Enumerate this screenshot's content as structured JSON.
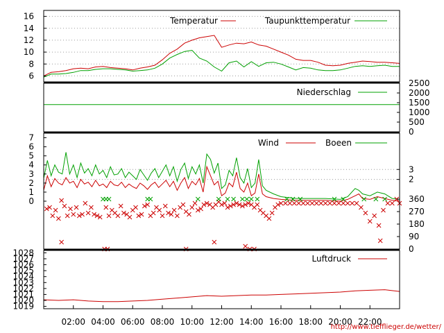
{
  "colors": {
    "red": "#cc0000",
    "green": "#00a000",
    "grid": "#9a9a9a",
    "frame": "#000000"
  },
  "source_url": "http://www.tiefflieger.de/wetter/",
  "x_axis": {
    "unit": "hours",
    "range": [
      0,
      24
    ],
    "ticks": [
      2,
      4,
      6,
      8,
      10,
      12,
      14,
      16,
      18,
      20,
      22
    ],
    "labels": [
      "02:00",
      "04:00",
      "06:00",
      "08:00",
      "10:00",
      "12:00",
      "14:00",
      "16:00",
      "18:00",
      "20:00",
      "22:00"
    ]
  },
  "chart_data": [
    {
      "type": "line",
      "panel": "temperature",
      "ylim": [
        5,
        17
      ],
      "yticks": [
        6,
        8,
        10,
        12,
        14,
        16
      ],
      "grid": true,
      "legend_position": "top-right",
      "series": [
        {
          "name": "Temperatur",
          "color": "#cc0000",
          "x": [
            0,
            0.5,
            1,
            1.5,
            2,
            2.5,
            3,
            3.5,
            4,
            4.5,
            5,
            5.5,
            6,
            6.5,
            7,
            7.5,
            8,
            8.5,
            9,
            9.5,
            10,
            10.5,
            11,
            11.5,
            12,
            12.5,
            13,
            13.5,
            14,
            14.5,
            15,
            15.5,
            16,
            16.5,
            17,
            17.5,
            18,
            18.5,
            19,
            19.5,
            20,
            20.5,
            21,
            21.5,
            22,
            22.5,
            23,
            23.5,
            24
          ],
          "y": [
            6.0,
            6.6,
            6.7,
            6.9,
            7.2,
            7.3,
            7.2,
            7.5,
            7.6,
            7.4,
            7.3,
            7.2,
            7.0,
            7.3,
            7.5,
            7.8,
            8.7,
            9.8,
            10.5,
            11.5,
            12.0,
            12.4,
            12.6,
            12.8,
            10.8,
            11.2,
            11.5,
            11.4,
            11.7,
            11.2,
            11.0,
            10.5,
            10.0,
            9.5,
            8.8,
            8.6,
            8.6,
            8.3,
            7.8,
            7.7,
            7.8,
            8.1,
            8.3,
            8.5,
            8.4,
            8.3,
            8.3,
            8.2,
            8.1
          ]
        },
        {
          "name": "Taupunkttemperatur",
          "color": "#00a000",
          "x": [
            0,
            0.5,
            1,
            1.5,
            2,
            2.5,
            3,
            3.5,
            4,
            4.5,
            5,
            5.5,
            6,
            6.5,
            7,
            7.5,
            8,
            8.5,
            9,
            9.5,
            10,
            10.5,
            11,
            11.5,
            12,
            12.5,
            13,
            13.5,
            14,
            14.5,
            15,
            15.5,
            16,
            16.5,
            17,
            17.5,
            18,
            18.5,
            19,
            19.5,
            20,
            20.5,
            21,
            21.5,
            22,
            22.5,
            23,
            23.5,
            24
          ],
          "y": [
            5.8,
            6.3,
            6.3,
            6.4,
            6.6,
            6.9,
            6.9,
            7.1,
            7.2,
            7.2,
            7.1,
            7.0,
            6.8,
            6.9,
            7.0,
            7.3,
            8.0,
            9.0,
            9.6,
            10.1,
            10.3,
            9.0,
            8.5,
            7.5,
            6.8,
            8.2,
            8.5,
            7.5,
            8.4,
            7.6,
            8.2,
            8.3,
            8.0,
            7.5,
            7.0,
            7.4,
            7.3,
            7.0,
            6.9,
            6.9,
            7.0,
            7.3,
            7.6,
            7.7,
            7.6,
            7.7,
            7.8,
            7.6,
            7.6
          ]
        }
      ]
    },
    {
      "type": "line",
      "panel": "precipitation",
      "ylim": [
        0,
        2500
      ],
      "yticks": [
        0,
        500,
        1000,
        1500,
        2000,
        2500
      ],
      "series": [
        {
          "name": "Niederschlag",
          "color": "#00a000",
          "x": [
            0,
            24
          ],
          "y": [
            1400,
            1400
          ]
        }
      ]
    },
    {
      "type": "line",
      "panel": "wind",
      "ylim": [
        0,
        7.5
      ],
      "yticks": [
        0,
        1,
        2,
        3,
        4,
        5,
        6,
        7
      ],
      "right_ticks": [
        {
          "label": "3",
          "value": 3.5
        },
        {
          "label": "2",
          "value": 2.4
        }
      ],
      "series": [
        {
          "name": "Wind",
          "color": "#cc0000",
          "x": [
            0,
            0.25,
            0.5,
            0.75,
            1,
            1.25,
            1.5,
            1.75,
            2,
            2.25,
            2.5,
            2.75,
            3,
            3.25,
            3.5,
            3.75,
            4,
            4.25,
            4.5,
            4.75,
            5,
            5.25,
            5.5,
            5.75,
            6,
            6.25,
            6.5,
            6.75,
            7,
            7.25,
            7.5,
            7.75,
            8,
            8.25,
            8.5,
            8.75,
            9,
            9.25,
            9.5,
            9.75,
            10,
            10.25,
            10.5,
            10.75,
            11,
            11.25,
            11.5,
            11.75,
            12,
            12.25,
            12.5,
            12.75,
            13,
            13.25,
            13.5,
            13.75,
            14,
            14.25,
            14.5,
            14.75,
            15,
            15.5,
            16,
            17,
            18,
            19,
            20,
            20.5,
            21,
            21.25,
            21.5,
            22,
            22.5,
            23,
            23.5,
            24
          ],
          "y": [
            1.2,
            2.8,
            1.6,
            2.5,
            2.0,
            1.8,
            2.6,
            2.0,
            2.2,
            1.5,
            2.4,
            1.9,
            2.1,
            1.6,
            2.3,
            1.7,
            1.9,
            1.5,
            2.2,
            1.8,
            1.7,
            2.1,
            1.5,
            1.9,
            1.6,
            1.4,
            2.0,
            1.7,
            1.3,
            1.8,
            2.1,
            1.5,
            1.9,
            2.3,
            1.6,
            2.2,
            1.2,
            2.0,
            2.6,
            1.4,
            2.2,
            1.8,
            2.5,
            1.0,
            3.8,
            2.8,
            1.8,
            2.2,
            0.6,
            0.9,
            2.0,
            1.6,
            3.2,
            1.4,
            1.0,
            2.0,
            0.6,
            0.9,
            3.0,
            0.8,
            0.5,
            0.3,
            0.2,
            0.1,
            0.1,
            0.1,
            0.0,
            0.2,
            0.6,
            0.8,
            0.3,
            0.2,
            0.5,
            0.3,
            0.1,
            0.0
          ]
        },
        {
          "name": "Boeen",
          "color": "#00a000",
          "x": [
            0,
            0.25,
            0.5,
            0.75,
            1,
            1.25,
            1.5,
            1.75,
            2,
            2.25,
            2.5,
            2.75,
            3,
            3.25,
            3.5,
            3.75,
            4,
            4.25,
            4.5,
            4.75,
            5,
            5.25,
            5.5,
            5.75,
            6,
            6.25,
            6.5,
            6.75,
            7,
            7.25,
            7.5,
            7.75,
            8,
            8.25,
            8.5,
            8.75,
            9,
            9.25,
            9.5,
            9.75,
            10,
            10.25,
            10.5,
            10.75,
            11,
            11.25,
            11.5,
            11.75,
            12,
            12.25,
            12.5,
            12.75,
            13,
            13.25,
            13.5,
            13.75,
            14,
            14.25,
            14.5,
            14.75,
            15,
            15.5,
            16,
            17,
            18,
            19,
            20,
            20.5,
            21,
            21.25,
            21.5,
            22,
            22.5,
            23,
            23.5,
            24
          ],
          "y": [
            2.5,
            4.5,
            2.8,
            4.0,
            3.2,
            3.0,
            5.4,
            3.0,
            4.0,
            2.6,
            4.2,
            3.1,
            3.6,
            2.8,
            4.0,
            3.0,
            3.4,
            2.6,
            3.8,
            2.9,
            3.0,
            3.6,
            2.6,
            3.2,
            2.8,
            2.4,
            3.5,
            2.9,
            2.3,
            3.1,
            3.6,
            2.6,
            3.3,
            4.0,
            2.8,
            3.8,
            2.2,
            3.5,
            4.2,
            2.5,
            3.8,
            3.0,
            4.0,
            2.0,
            5.2,
            4.6,
            3.1,
            4.2,
            1.4,
            1.8,
            3.4,
            2.8,
            4.8,
            2.6,
            2.0,
            3.6,
            1.5,
            2.0,
            4.6,
            1.7,
            1.2,
            0.8,
            0.5,
            0.3,
            0.3,
            0.3,
            0.2,
            0.5,
            1.4,
            1.2,
            0.8,
            0.6,
            1.0,
            0.8,
            0.3,
            0.2
          ]
        }
      ]
    },
    {
      "type": "scatter",
      "panel": "wind-direction",
      "ylim": [
        0,
        360
      ],
      "yticks": [
        0,
        90,
        180,
        270,
        360
      ],
      "series": [
        {
          "name": "",
          "color": "#cc0000",
          "x": [
            0.2,
            0.4,
            0.6,
            0.8,
            1.0,
            1.2,
            1.4,
            1.6,
            1.8,
            2.0,
            2.2,
            2.4,
            2.6,
            2.8,
            3.0,
            3.2,
            3.4,
            3.6,
            3.8,
            4.2,
            4.4,
            4.6,
            4.8,
            5.0,
            5.2,
            5.4,
            5.6,
            5.8,
            6.0,
            6.2,
            6.4,
            6.6,
            6.8,
            7.0,
            7.2,
            7.4,
            7.6,
            7.8,
            8.0,
            8.2,
            8.4,
            8.6,
            8.8,
            9.0,
            9.2,
            9.4,
            9.6,
            9.8,
            10.0,
            10.2,
            10.4,
            10.6,
            10.8,
            11.0,
            11.2,
            11.4,
            11.6,
            11.8,
            12.0,
            12.2,
            12.4,
            12.6,
            12.8,
            13.0,
            13.2,
            13.4,
            13.6,
            13.8,
            14.0,
            14.2,
            14.4,
            14.6,
            14.8,
            15.0,
            15.2,
            15.4,
            15.6,
            15.8,
            16.0,
            16.3,
            16.6,
            16.9,
            17.2,
            17.5,
            17.8,
            18.1,
            18.4,
            18.7,
            19.0,
            19.3,
            19.6,
            19.9,
            20.2,
            20.5,
            20.8,
            21.1,
            21.4,
            21.7,
            22.0,
            22.3,
            22.6,
            22.9,
            23.2,
            23.5,
            23.8,
            24.0,
            1.2,
            4.1,
            4.3,
            9.6,
            11.5,
            13.6,
            13.9,
            14.2,
            22.7
          ],
          "y": [
            290,
            300,
            240,
            280,
            220,
            350,
            310,
            240,
            290,
            250,
            300,
            240,
            250,
            330,
            260,
            300,
            250,
            240,
            230,
            300,
            240,
            280,
            260,
            240,
            310,
            260,
            250,
            230,
            280,
            300,
            240,
            250,
            310,
            320,
            240,
            260,
            300,
            280,
            240,
            310,
            260,
            250,
            280,
            240,
            300,
            320,
            270,
            250,
            300,
            330,
            280,
            290,
            320,
            330,
            320,
            300,
            320,
            340,
            320,
            330,
            300,
            310,
            320,
            330,
            320,
            310,
            320,
            330,
            320,
            300,
            320,
            280,
            260,
            240,
            220,
            260,
            300,
            320,
            330,
            330,
            330,
            330,
            330,
            330,
            330,
            330,
            330,
            330,
            330,
            330,
            330,
            330,
            330,
            330,
            330,
            330,
            300,
            260,
            200,
            240,
            170,
            280,
            330,
            330,
            360,
            330,
            50,
            0,
            0,
            0,
            50,
            20,
            0,
            0,
            60
          ]
        },
        {
          "name": "",
          "color": "#00a000",
          "x": [
            4.0,
            4.2,
            4.4,
            7.0,
            7.2,
            10.4,
            11.8,
            12.4,
            12.8,
            13.4,
            13.7,
            14.0,
            14.4,
            16.4,
            16.8,
            17.3,
            19.6,
            20.2,
            21.6,
            22.4,
            23.0
          ],
          "y": [
            360,
            360,
            360,
            360,
            360,
            360,
            360,
            360,
            360,
            360,
            360,
            360,
            360,
            360,
            360,
            360,
            360,
            360,
            360,
            360,
            360
          ]
        }
      ]
    },
    {
      "type": "line",
      "panel": "pressure",
      "ylim": [
        1018.6,
        1028.4
      ],
      "yticks": [
        1019,
        1020,
        1021,
        1022,
        1023,
        1024,
        1025,
        1026,
        1027,
        1028
      ],
      "legend_position": "top-right",
      "series": [
        {
          "name": "Luftdruck",
          "color": "#cc0000",
          "x": [
            0,
            1,
            2,
            3,
            4,
            5,
            6,
            7,
            8,
            9,
            10,
            11,
            12,
            13,
            14,
            15,
            16,
            17,
            18,
            19,
            20,
            21,
            22,
            23,
            24
          ],
          "y": [
            1020.1,
            1020.0,
            1020.1,
            1019.9,
            1019.8,
            1019.8,
            1019.9,
            1020.0,
            1020.2,
            1020.4,
            1020.6,
            1020.8,
            1020.7,
            1020.8,
            1020.9,
            1020.9,
            1021.0,
            1021.1,
            1021.2,
            1021.3,
            1021.4,
            1021.6,
            1021.7,
            1021.8,
            1021.5
          ]
        }
      ]
    }
  ]
}
